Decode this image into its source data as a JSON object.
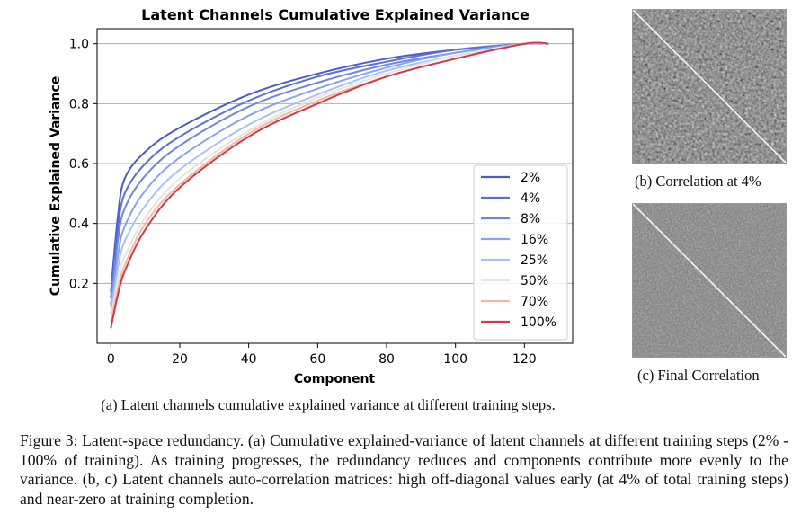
{
  "chart_data": {
    "type": "line",
    "title": "Latent Channels Cumulative Explained Variance",
    "xlabel": "Component",
    "ylabel": "Cumulative Explained Variance",
    "xlim": [
      -4,
      134
    ],
    "ylim": [
      0.0,
      1.05
    ],
    "xticks": [
      0,
      20,
      40,
      60,
      80,
      100,
      120
    ],
    "yticks": [
      0.2,
      0.4,
      0.6,
      0.8,
      1.0
    ],
    "xtick_labels": [
      "0",
      "20",
      "40",
      "60",
      "80",
      "100",
      "120"
    ],
    "ytick_labels": [
      "0.2",
      "0.4",
      "0.6",
      "0.8",
      "1.0"
    ],
    "grid": "horizontal",
    "legend_position": "center-right",
    "x": [
      0,
      2,
      4,
      10,
      20,
      40,
      60,
      80,
      100,
      120,
      127
    ],
    "series": [
      {
        "name": "2%",
        "color": "#4a5ccc",
        "values": [
          0.17,
          0.42,
          0.55,
          0.64,
          0.72,
          0.83,
          0.9,
          0.95,
          0.98,
          1.0,
          1.0
        ]
      },
      {
        "name": "4%",
        "color": "#5b6fd6",
        "values": [
          0.15,
          0.38,
          0.5,
          0.6,
          0.69,
          0.81,
          0.89,
          0.94,
          0.98,
          1.0,
          1.0
        ]
      },
      {
        "name": "8%",
        "color": "#6f86e0",
        "values": [
          0.13,
          0.34,
          0.45,
          0.56,
          0.66,
          0.79,
          0.87,
          0.93,
          0.97,
          1.0,
          1.0
        ]
      },
      {
        "name": "16%",
        "color": "#88a2ec",
        "values": [
          0.12,
          0.29,
          0.39,
          0.51,
          0.62,
          0.76,
          0.85,
          0.92,
          0.97,
          1.0,
          1.0
        ]
      },
      {
        "name": "25%",
        "color": "#a9c1f5",
        "values": [
          0.1,
          0.25,
          0.34,
          0.46,
          0.58,
          0.73,
          0.83,
          0.91,
          0.96,
          1.0,
          1.0
        ]
      },
      {
        "name": "50%",
        "color": "#e8e4dd",
        "values": [
          0.08,
          0.21,
          0.29,
          0.42,
          0.55,
          0.71,
          0.82,
          0.9,
          0.96,
          1.0,
          1.0
        ]
      },
      {
        "name": "70%",
        "color": "#f1b9a2",
        "values": [
          0.07,
          0.18,
          0.26,
          0.4,
          0.53,
          0.7,
          0.81,
          0.89,
          0.95,
          1.0,
          1.0
        ]
      },
      {
        "name": "100%",
        "color": "#d23a4a",
        "values": [
          0.05,
          0.16,
          0.24,
          0.38,
          0.52,
          0.69,
          0.8,
          0.89,
          0.95,
          1.0,
          1.0
        ]
      }
    ]
  },
  "captions": {
    "a": "(a) Latent channels cumulative explained variance at different training steps.",
    "b": "(b) Correlation at 4%",
    "c": "(c) Final Correlation"
  },
  "figure_caption": "Figure 3: Latent-space redundancy. (a) Cumulative explained-variance of latent channels at different training steps (2% - 100% of training). As training progresses, the redundancy reduces and components contribute more evenly to the variance. (b, c) Latent channels auto-correlation matrices: high off-diagonal values early (at 4% of total training steps) and near-zero at training completion."
}
